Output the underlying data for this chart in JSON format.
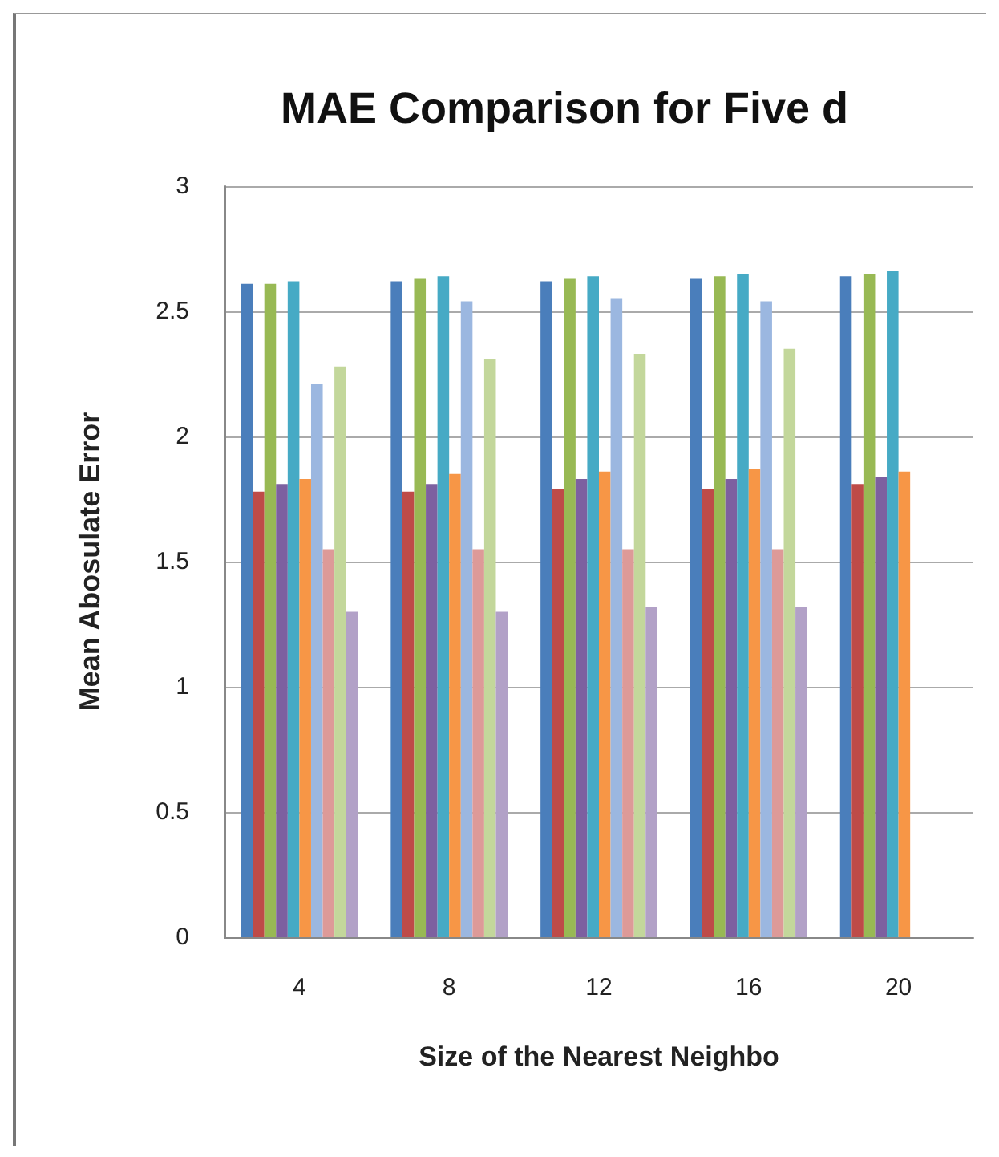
{
  "chart_data": {
    "type": "bar",
    "title": "MAE Comparison for Five d",
    "xlabel": "Size of the Nearest Neighbo",
    "ylabel": "Mean Abosulate Error",
    "categories": [
      "4",
      "8",
      "12",
      "16",
      "20"
    ],
    "series": [
      {
        "color": "#4a7ebb",
        "values": [
          2.61,
          2.62,
          2.62,
          2.63,
          2.64
        ]
      },
      {
        "color": "#be4b48",
        "values": [
          1.78,
          1.78,
          1.79,
          1.79,
          1.81
        ]
      },
      {
        "color": "#98b954",
        "values": [
          2.61,
          2.63,
          2.63,
          2.64,
          2.65
        ]
      },
      {
        "color": "#7d60a0",
        "values": [
          1.81,
          1.81,
          1.83,
          1.83,
          1.84
        ]
      },
      {
        "color": "#46aac5",
        "values": [
          2.62,
          2.64,
          2.64,
          2.65,
          2.66
        ]
      },
      {
        "color": "#f79646",
        "values": [
          1.83,
          1.85,
          1.86,
          1.87,
          1.86
        ]
      },
      {
        "color": "#9bb7e0",
        "values": [
          2.21,
          2.54,
          2.55,
          2.54,
          null
        ]
      },
      {
        "color": "#dd9a98",
        "values": [
          1.55,
          1.55,
          1.55,
          1.55,
          null
        ]
      },
      {
        "color": "#c3d79b",
        "values": [
          2.28,
          2.31,
          2.33,
          2.35,
          null
        ]
      },
      {
        "color": "#b2a1c7",
        "values": [
          1.3,
          1.3,
          1.32,
          1.32,
          null
        ]
      }
    ],
    "ylim": [
      0,
      3
    ],
    "yticks": [
      0,
      0.5,
      1,
      1.5,
      2,
      2.5,
      3
    ],
    "grid": "y"
  }
}
